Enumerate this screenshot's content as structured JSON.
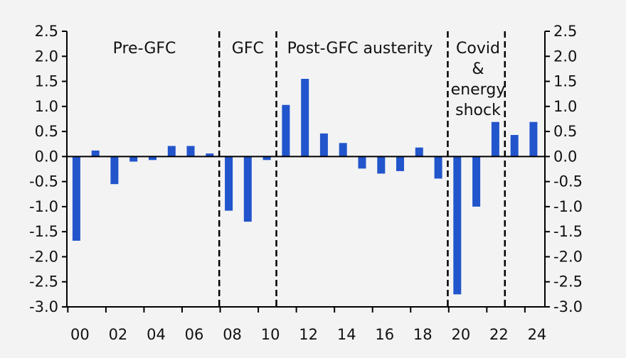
{
  "chart_data": {
    "type": "bar",
    "title": "",
    "xlabel": "",
    "ylabel": "",
    "ylim": [
      -3.0,
      2.5
    ],
    "y_ticks": [
      2.5,
      2.0,
      1.5,
      1.0,
      0.5,
      0.0,
      -0.5,
      -1.0,
      -1.5,
      -2.0,
      -2.5,
      -3.0
    ],
    "y_tick_labels": [
      "2.5",
      "2.0",
      "1.5",
      "1.0",
      "0.5",
      "0.0",
      "-0.5",
      "-1.0",
      "-1.5",
      "-2.0",
      "-2.5",
      "-3.0"
    ],
    "x_tick_labels": [
      "00",
      "02",
      "04",
      "06",
      "08",
      "10",
      "12",
      "14",
      "16",
      "18",
      "20",
      "22",
      "24"
    ],
    "grid": false,
    "bar_color": "#2255cc",
    "categories": [
      "2000",
      "2001",
      "2002",
      "2003",
      "2004",
      "2005",
      "2006",
      "2007",
      "2008",
      "2009",
      "2010",
      "2011",
      "2012",
      "2013",
      "2014",
      "2015",
      "2016",
      "2017",
      "2018",
      "2019",
      "2020",
      "2021",
      "2022",
      "2023",
      "2024"
    ],
    "values": [
      -1.68,
      0.12,
      -0.55,
      -0.1,
      -0.07,
      0.21,
      0.21,
      0.06,
      -1.08,
      -1.3,
      -0.07,
      1.03,
      1.55,
      0.46,
      0.27,
      -0.24,
      -0.34,
      -0.29,
      0.18,
      -0.44,
      -2.75,
      -1.0,
      0.69,
      0.43,
      0.69
    ],
    "dividers_after_year": [
      2007.5,
      2010.5,
      2019.5,
      2022.5
    ],
    "eras": [
      {
        "label_lines": [
          "Pre-GFC"
        ]
      },
      {
        "label_lines": [
          "GFC"
        ]
      },
      {
        "label_lines": [
          "Post-GFC austerity"
        ]
      },
      {
        "label_lines": [
          "Covid",
          "&",
          "energy",
          "shock"
        ]
      }
    ]
  }
}
